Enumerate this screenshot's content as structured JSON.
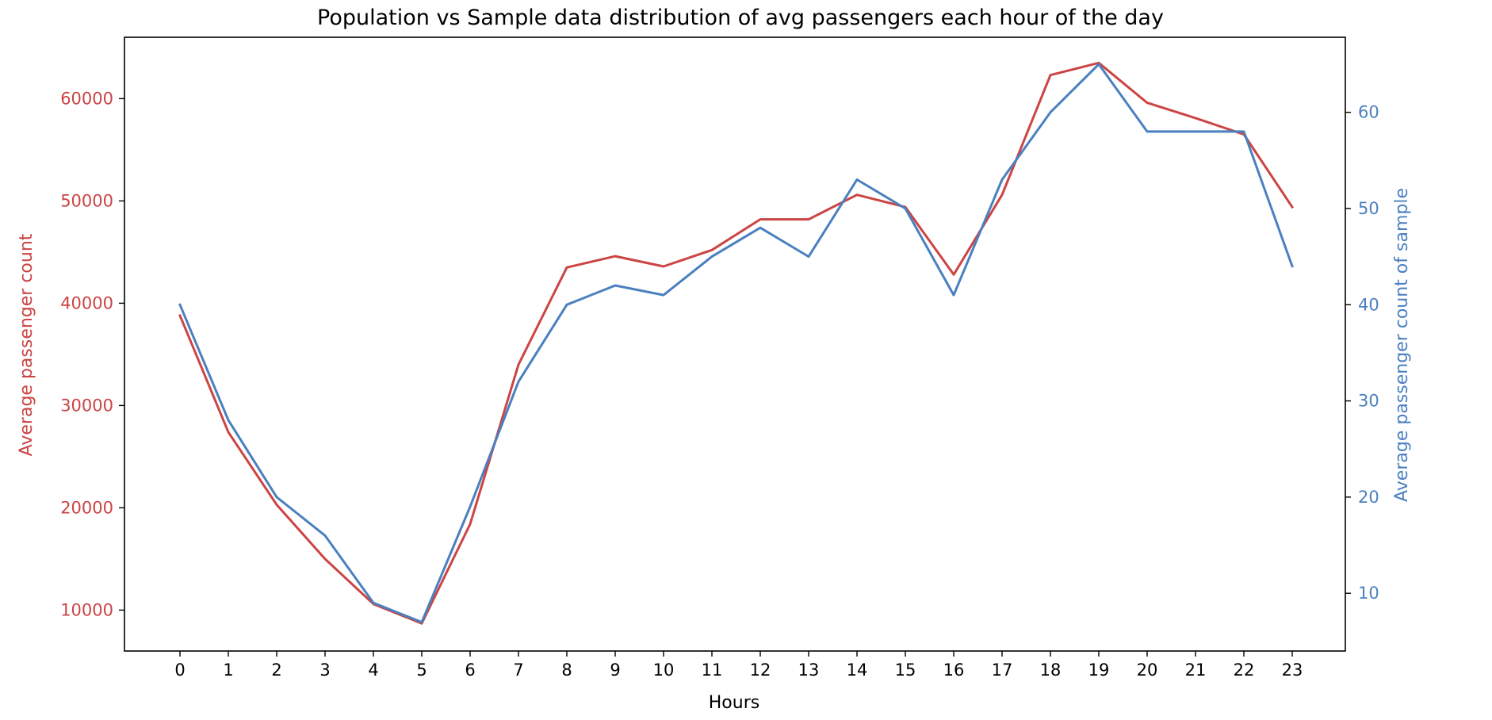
{
  "chart_data": {
    "type": "line",
    "title": "Population vs Sample data distribution of avg passengers each hour of the day",
    "xlabel": "Hours",
    "ylabel": "Average passenger count",
    "y2label": "Average passenger count of sample",
    "x": [
      0,
      1,
      2,
      3,
      4,
      5,
      6,
      7,
      8,
      9,
      10,
      11,
      12,
      13,
      14,
      15,
      16,
      17,
      18,
      19,
      20,
      21,
      22,
      23
    ],
    "x_tick_labels": [
      "0",
      "1",
      "2",
      "3",
      "4",
      "5",
      "6",
      "7",
      "8",
      "9",
      "10",
      "11",
      "12",
      "13",
      "14",
      "15",
      "16",
      "17",
      "18",
      "19",
      "20",
      "21",
      "22",
      "23"
    ],
    "ylim": [
      6000,
      66000
    ],
    "y2lim": [
      4.0,
      67.8
    ],
    "y_ticks": [
      10000,
      20000,
      30000,
      40000,
      50000,
      60000
    ],
    "y_tick_labels": [
      "10000",
      "20000",
      "30000",
      "40000",
      "50000",
      "60000"
    ],
    "y2_ticks": [
      10,
      20,
      30,
      40,
      50,
      60
    ],
    "y2_tick_labels": [
      "10",
      "20",
      "30",
      "40",
      "50",
      "60"
    ],
    "grid": false,
    "series": [
      {
        "axis": "left",
        "color": "#cc4444",
        "values": [
          38800,
          27400,
          20300,
          15000,
          10600,
          8700,
          18400,
          34000,
          43500,
          44600,
          43600,
          45200,
          48200,
          48200,
          50600,
          49400,
          42800,
          50600,
          62300,
          63500,
          59600,
          58100,
          56500,
          49400
        ]
      },
      {
        "axis": "right",
        "color": "#4a80bf",
        "values": [
          40,
          28,
          20,
          16,
          9,
          7,
          19,
          32,
          40,
          42,
          41,
          45,
          48,
          45,
          53,
          50,
          41,
          53,
          60,
          65,
          58,
          58,
          58,
          44
        ]
      }
    ],
    "colors": {
      "left_axis": "#cc4444",
      "right_axis": "#4a80bf",
      "frame": "#000000"
    }
  }
}
